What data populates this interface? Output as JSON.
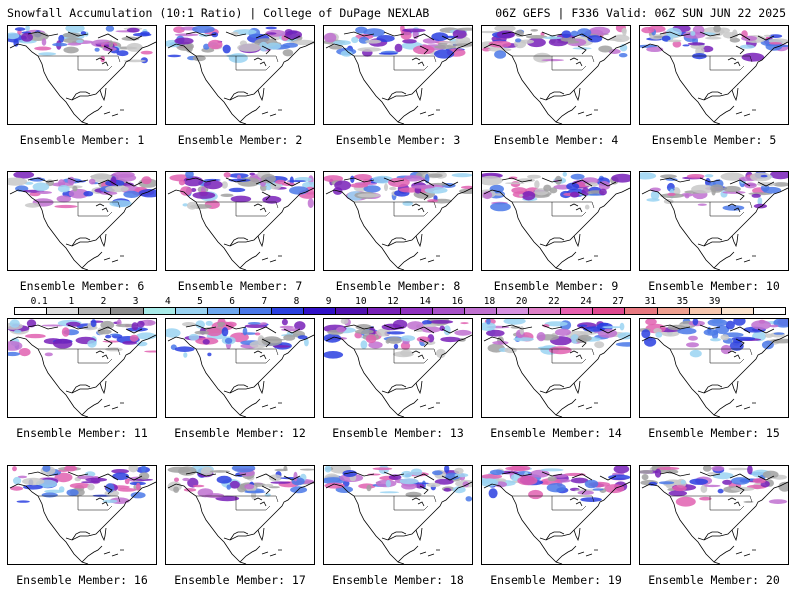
{
  "header": {
    "left_title": "Snowfall Accumulation (10:1 Ratio) | College of DuPage NEXLAB",
    "right_title": "06Z GEFS | F336 Valid: 06Z SUN JUN 22 2025"
  },
  "colorbar": {
    "ticks": [
      "0.1",
      "1",
      "2",
      "3",
      "4",
      "5",
      "6",
      "7",
      "8",
      "9",
      "10",
      "12",
      "14",
      "16",
      "18",
      "20",
      "22",
      "24",
      "27",
      "31",
      "35",
      "39"
    ],
    "colors": [
      "#ffffff",
      "#e0e0e0",
      "#b8b8b8",
      "#8f8f8f",
      "#a8ebe8",
      "#9ad3f2",
      "#6ea8f0",
      "#4a78e8",
      "#2a40e0",
      "#3010c8",
      "#5010b0",
      "#7820b8",
      "#9030c0",
      "#a850c8",
      "#c070d0",
      "#d890e0",
      "#e080c8",
      "#e860b0",
      "#e04890",
      "#e87880",
      "#f0a090",
      "#f8c8b0",
      "#fce4d0",
      "#ffffff"
    ]
  },
  "panels": [
    {
      "label": "Ensemble Member: 1"
    },
    {
      "label": "Ensemble Member: 2"
    },
    {
      "label": "Ensemble Member: 3"
    },
    {
      "label": "Ensemble Member: 4"
    },
    {
      "label": "Ensemble Member: 5"
    },
    {
      "label": "Ensemble Member: 6"
    },
    {
      "label": "Ensemble Member: 7"
    },
    {
      "label": "Ensemble Member: 8"
    },
    {
      "label": "Ensemble Member: 9"
    },
    {
      "label": "Ensemble Member: 10"
    },
    {
      "label": "Ensemble Member: 11"
    },
    {
      "label": "Ensemble Member: 12"
    },
    {
      "label": "Ensemble Member: 13"
    },
    {
      "label": "Ensemble Member: 14"
    },
    {
      "label": "Ensemble Member: 15"
    },
    {
      "label": "Ensemble Member: 16"
    },
    {
      "label": "Ensemble Member: 17"
    },
    {
      "label": "Ensemble Member: 18"
    },
    {
      "label": "Ensemble Member: 19"
    },
    {
      "label": "Ensemble Member: 20"
    }
  ]
}
